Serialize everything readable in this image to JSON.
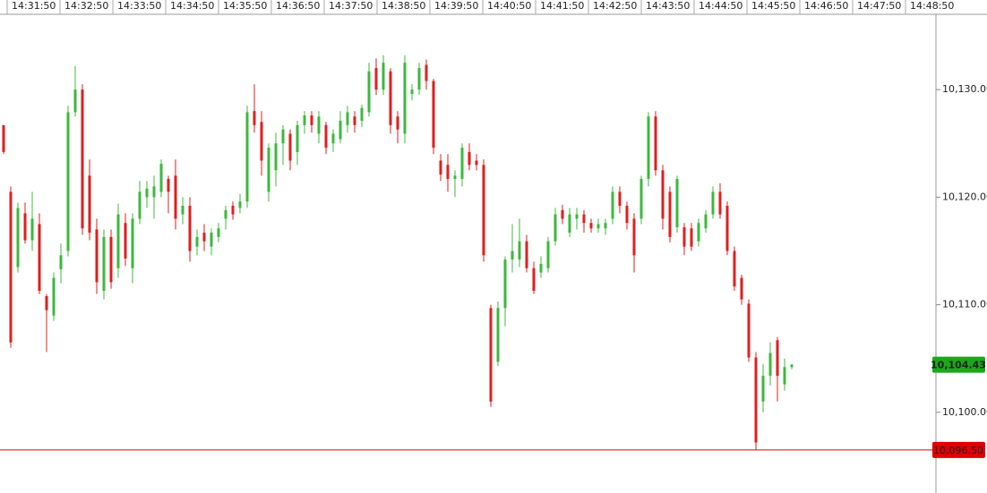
{
  "chart_data": {
    "type": "candlestick",
    "x_labels": [
      "14:31:50",
      "14:32:50",
      "14:33:50",
      "14:34:50",
      "14:35:50",
      "14:36:50",
      "14:37:50",
      "14:38:50",
      "14:39:50",
      "14:40:50",
      "14:41:50",
      "14:42:50",
      "14:43:50",
      "14:44:50",
      "14:45:50",
      "14:46:50",
      "14:47:50",
      "14:48:50"
    ],
    "ylim": [
      10092.5,
      10137
    ],
    "yticks": [
      {
        "value": 10100,
        "label": "10,100.00"
      },
      {
        "value": 10110,
        "label": "10,110.00"
      },
      {
        "value": 10120,
        "label": "10,120.00"
      },
      {
        "value": 10130,
        "label": "10,130.00"
      }
    ],
    "up_color": "#3cb83c",
    "down_color": "#e21e1e",
    "last_price": {
      "value": 10104.43,
      "label": "10,104.43",
      "color": "#1aa81a"
    },
    "reference_line": {
      "value": 10096.5,
      "label": "10,096.50",
      "color": "#e00000"
    },
    "open": [
      10126.7,
      10120.5,
      10113.5,
      10118.5,
      10116,
      10117.5,
      10110.8,
      10109,
      10113.3,
      10115,
      10127.9,
      10130,
      10122,
      10117,
      10111.3,
      10116.3,
      10113.4,
      10117.6,
      10113.4,
      10118,
      10120,
      10120,
      10120.5,
      10121.7,
      10122,
      10118.4,
      10119.2,
      10115.4,
      10116.7,
      10115.4,
      10116.3,
      10118,
      10119.2,
      10119,
      10119.6,
      10128,
      10127,
      10120.5,
      10122.5,
      10125,
      10125.9,
      10124.2,
      10126.7,
      10127.6,
      10125.9,
      10126.7,
      10125,
      10125.4,
      10126.7,
      10127.5,
      10127.1,
      10127.9,
      10132,
      10130,
      10131.7,
      10127.5,
      10125.9,
      10129.6,
      10130,
      10132.3,
      10130.8,
      10123.4,
      10123,
      10121.7,
      10121.7,
      10124.2,
      10123.4,
      10123,
      10109.7,
      10104.7,
      10109.7,
      10114.2,
      10114.2,
      10115.9,
      10113.4,
      10113,
      10113.4,
      10115.9,
      10118.8,
      10116.7,
      10118,
      10118.4,
      10117.6,
      10117.1,
      10117.1,
      10118,
      10120.5,
      10119.2,
      10118,
      10118,
      10121.7,
      10127.5,
      10122.5,
      10120.5,
      10117.2,
      10117.2,
      10117.1,
      10115.9,
      10117.1,
      10118.4,
      10120.5,
      10119.2,
      10115,
      10112.5,
      10110.1,
      10105.1,
      10101,
      10103.4,
      10106.7,
      10102.6,
      10104.2
    ],
    "high": [
      10126.7,
      10121,
      10119.5,
      10119.5,
      10120.5,
      10118.5,
      10111,
      10113,
      10115.7,
      10128.5,
      10132.2,
      10130.5,
      10123.5,
      10118,
      10117,
      10117,
      10119.4,
      10118.5,
      10118.5,
      10121.5,
      10121.5,
      10122,
      10123.5,
      10122,
      10123.5,
      10120,
      10120,
      10117,
      10117.5,
      10117.1,
      10117.6,
      10119.2,
      10119.6,
      10120.3,
      10128.5,
      10130.5,
      10128,
      10125,
      10126,
      10126.7,
      10126.3,
      10127.1,
      10128,
      10128,
      10128,
      10127,
      10126.3,
      10128,
      10128.5,
      10128,
      10128.6,
      10132.5,
      10132.9,
      10133.2,
      10132,
      10128,
      10133.2,
      10130.5,
      10132.5,
      10132.8,
      10131,
      10124,
      10124,
      10122.5,
      10125,
      10125,
      10124,
      10123.5,
      10110,
      10110.3,
      10114.5,
      10117.5,
      10118,
      10116.5,
      10114,
      10114.5,
      10116.3,
      10119,
      10119.3,
      10119,
      10119,
      10118.8,
      10118,
      10118,
      10118,
      10121,
      10121,
      10119.6,
      10118.5,
      10122,
      10127.9,
      10128,
      10123,
      10121,
      10122,
      10117.6,
      10117.6,
      10118,
      10118.8,
      10121,
      10121.3,
      10119.6,
      10115.4,
      10112.8,
      10110.5,
      10105.6,
      10104.5,
      10106.5,
      10107,
      10105,
      10104.5
    ],
    "low": [
      10124,
      10106,
      10113,
      10115.7,
      10115,
      10111,
      10105.6,
      10108.5,
      10112,
      10114.5,
      10127.5,
      10116.5,
      10116,
      10111,
      10110.5,
      10111.5,
      10112.5,
      10113.6,
      10112,
      10117.5,
      10119,
      10118,
      10120,
      10118.5,
      10117,
      10117.5,
      10114,
      10114.6,
      10115,
      10114.6,
      10115.8,
      10117,
      10117.9,
      10118.5,
      10119,
      10126,
      10122,
      10119.6,
      10121,
      10123,
      10122.5,
      10123,
      10125.9,
      10126,
      10125,
      10124,
      10124.2,
      10125,
      10126,
      10126,
      10126.5,
      10127.5,
      10129.5,
      10129.5,
      10125.9,
      10125,
      10125,
      10129,
      10129.5,
      10130,
      10124,
      10121.5,
      10120.5,
      10120,
      10121,
      10122.5,
      10122.5,
      10114,
      10100.5,
      10104.3,
      10108,
      10113,
      10113.5,
      10113,
      10111,
      10112.5,
      10113,
      10115.5,
      10117.5,
      10116.3,
      10117,
      10116.7,
      10116.7,
      10116.7,
      10116.5,
      10117.5,
      10118.5,
      10117,
      10113,
      10117.5,
      10121,
      10122,
      10117,
      10115.8,
      10116.7,
      10114.6,
      10115,
      10115.4,
      10116.7,
      10118,
      10118,
      10114.6,
      10111.3,
      10110,
      10104.7,
      10096.5,
      10100,
      10102.5,
      10101,
      10102,
      10104
    ],
    "close": [
      10124.2,
      10106.5,
      10119,
      10116,
      10118,
      10111.3,
      10109.5,
      10112.5,
      10114.6,
      10127.9,
      10130,
      10117.1,
      10116.7,
      10112.1,
      10116.3,
      10112.1,
      10118.4,
      10114.3,
      10118,
      10120.5,
      10120.8,
      10121,
      10123.1,
      10120.5,
      10118,
      10119.2,
      10115,
      10116.3,
      10115.9,
      10116.7,
      10117.1,
      10118.8,
      10118.4,
      10119.6,
      10127.9,
      10126.7,
      10123.4,
      10124.6,
      10125,
      10126.3,
      10123.4,
      10126.7,
      10127.6,
      10126.7,
      10127.5,
      10124.6,
      10125.9,
      10127.1,
      10127.9,
      10126.7,
      10128.3,
      10131.7,
      10130,
      10132.5,
      10126.7,
      10126.3,
      10132.5,
      10130,
      10132,
      10130.8,
      10124.6,
      10122.1,
      10121.7,
      10122,
      10124.6,
      10123,
      10123,
      10114.6,
      10101,
      10109.7,
      10114.2,
      10115,
      10115.9,
      10113.4,
      10111.3,
      10113.8,
      10115.9,
      10118.4,
      10118,
      10118.4,
      10118.4,
      10117.6,
      10117.1,
      10117.5,
      10117.6,
      10120.5,
      10119.2,
      10117.6,
      10114.6,
      10121.7,
      10127.5,
      10122.5,
      10118,
      10116.3,
      10121.7,
      10115.4,
      10115.4,
      10117.6,
      10118.4,
      10120.5,
      10118.4,
      10115,
      10111.7,
      10110.5,
      10105.1,
      10097.2,
      10103.4,
      10105.5,
      10103.4,
      10104.2,
      10104.43
    ]
  }
}
